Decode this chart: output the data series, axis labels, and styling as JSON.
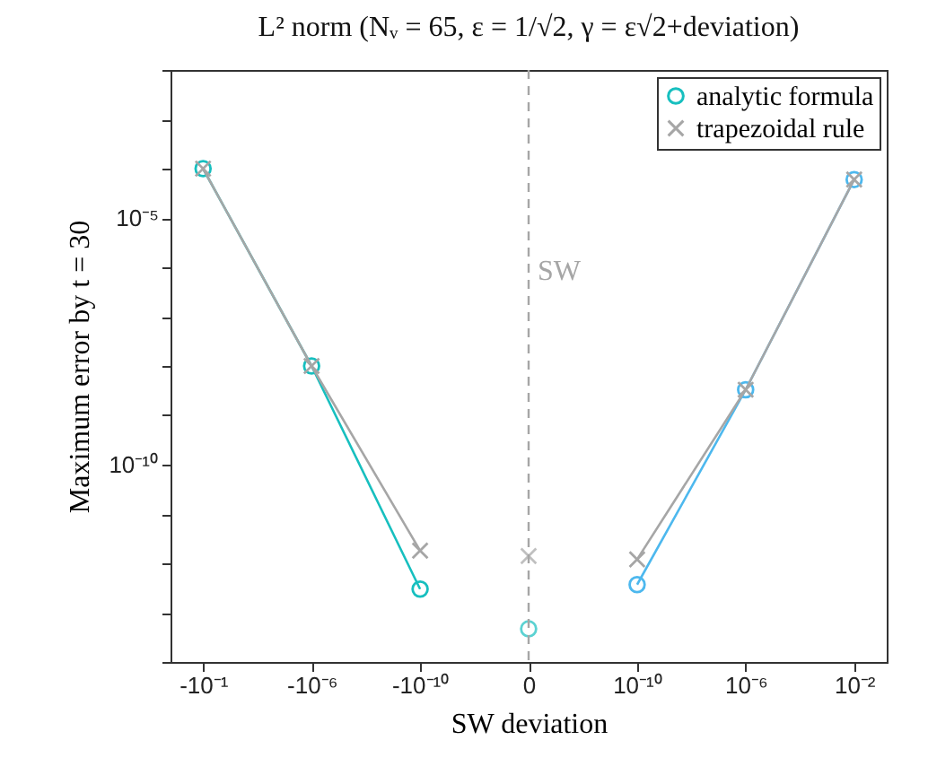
{
  "chart_data": {
    "type": "line",
    "title": "L² norm (Nᵥ = 65, ε = 1/√2, γ = ε√2+deviation)",
    "xlabel": "SW deviation",
    "ylabel": "Maximum error by t = 30",
    "categories": [
      "-10⁻¹",
      "-10⁻⁶",
      "-10⁻¹⁰",
      "0",
      "10⁻¹⁰",
      "10⁻⁶",
      "10⁻²"
    ],
    "series": [
      {
        "name": "analytic formula",
        "marker": "circle",
        "color": "#17bfbf",
        "values": [
          0.0001,
          1e-08,
          3e-13,
          null,
          null,
          null,
          null
        ]
      },
      {
        "name": "trapezoidal rule",
        "marker": "cross",
        "color": "#a6a6a6",
        "values": [
          0.0001,
          1e-08,
          1.8e-12,
          null,
          null,
          null,
          null
        ]
      },
      {
        "type": "scatter",
        "marker": "circle",
        "color": "#17bfbf",
        "values": [
          null,
          null,
          null,
          4.7e-14,
          null,
          null,
          null
        ]
      },
      {
        "type": "scatter",
        "marker": "cross",
        "color": "#a6a6a6",
        "values": [
          null,
          null,
          null,
          1.4e-12,
          null,
          null,
          null
        ]
      },
      {
        "marker": "circle",
        "color": "#4db8ee",
        "values": [
          null,
          null,
          null,
          null,
          3.7e-13,
          3.3e-09,
          6e-05
        ]
      },
      {
        "marker": "cross",
        "color": "#a6a6a6",
        "values": [
          null,
          null,
          null,
          null,
          1.2e-12,
          3.3e-09,
          6e-05
        ]
      }
    ],
    "log": true,
    "ylim": [
      1e-14,
      0.01
    ],
    "yticks": [
      {
        "value": 1e-14,
        "label": null
      },
      {
        "value": 1e-13,
        "label": null
      },
      {
        "value": 1e-12,
        "label": null
      },
      {
        "value": 1e-11,
        "label": null
      },
      {
        "value": 1e-10,
        "label": "10⁻¹⁰"
      },
      {
        "value": 1e-09,
        "label": null
      },
      {
        "value": 1e-08,
        "label": null
      },
      {
        "value": 1e-07,
        "label": null
      },
      {
        "value": 1e-06,
        "label": null
      },
      {
        "value": 1e-05,
        "label": "10⁻⁵"
      },
      {
        "value": 0.0001,
        "label": null
      },
      {
        "value": 0.001,
        "label": null
      },
      {
        "value": 0.01,
        "label": null
      }
    ],
    "ref_lines": [
      {
        "axis": "x",
        "value": "0",
        "label": "SW",
        "color": "#a6a6a6",
        "line_style": "dashed"
      }
    ],
    "grid": false,
    "legend": "top right"
  }
}
